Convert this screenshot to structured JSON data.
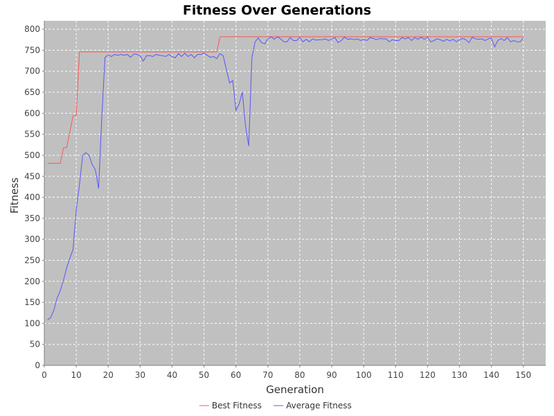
{
  "chart_data": {
    "type": "line",
    "title": "Fitness Over Generations",
    "xlabel": "Generation",
    "ylabel": "Fitness",
    "xlim": [
      0,
      157
    ],
    "ylim": [
      0,
      820
    ],
    "xticks": [
      0,
      10,
      20,
      30,
      40,
      50,
      60,
      70,
      80,
      90,
      100,
      110,
      120,
      130,
      140,
      150
    ],
    "yticks": [
      0,
      50,
      100,
      150,
      200,
      250,
      300,
      350,
      400,
      450,
      500,
      550,
      600,
      650,
      700,
      750,
      800
    ],
    "grid": true,
    "legend_position": "bottom-center",
    "colors": {
      "plot_background": "#c0c0c0",
      "grid": "#ffffff",
      "axis": "#808080"
    },
    "series": [
      {
        "name": "Best Fitness",
        "color": "#ff5555",
        "x": [
          1,
          5,
          6,
          7,
          8,
          9,
          10,
          11,
          54,
          55,
          150
        ],
        "y": [
          481,
          481,
          518,
          518,
          556,
          594,
          594,
          746,
          746,
          782,
          782
        ]
      },
      {
        "name": "Average Fitness",
        "color": "#5555ff",
        "x": [
          1,
          2,
          3,
          4,
          5,
          6,
          7,
          8,
          9,
          10,
          11,
          12,
          13,
          14,
          15,
          16,
          17,
          18,
          19,
          20,
          21,
          22,
          23,
          24,
          25,
          26,
          27,
          28,
          29,
          30,
          31,
          32,
          33,
          34,
          35,
          36,
          37,
          38,
          39,
          40,
          41,
          42,
          43,
          44,
          45,
          46,
          47,
          48,
          49,
          50,
          51,
          52,
          53,
          54,
          55,
          56,
          57,
          58,
          59,
          60,
          61,
          62,
          63,
          64,
          65,
          66,
          67,
          68,
          69,
          70,
          71,
          72,
          73,
          74,
          75,
          76,
          77,
          78,
          79,
          80,
          81,
          82,
          83,
          84,
          85,
          86,
          87,
          88,
          89,
          90,
          91,
          92,
          93,
          94,
          95,
          96,
          97,
          98,
          99,
          100,
          101,
          102,
          103,
          104,
          105,
          106,
          107,
          108,
          109,
          110,
          111,
          112,
          113,
          114,
          115,
          116,
          117,
          118,
          119,
          120,
          121,
          122,
          123,
          124,
          125,
          126,
          127,
          128,
          129,
          130,
          131,
          132,
          133,
          134,
          135,
          136,
          137,
          138,
          139,
          140,
          141,
          142,
          143,
          144,
          145,
          146,
          147,
          148,
          149,
          150
        ],
        "y": [
          108,
          114,
          132,
          160,
          178,
          203,
          232,
          255,
          276,
          370,
          430,
          500,
          506,
          500,
          478,
          465,
          421,
          590,
          733,
          739,
          735,
          740,
          738,
          740,
          738,
          740,
          733,
          741,
          740,
          737,
          724,
          737,
          737,
          735,
          740,
          738,
          737,
          735,
          740,
          735,
          732,
          742,
          735,
          743,
          735,
          740,
          732,
          740,
          740,
          743,
          738,
          733,
          735,
          730,
          742,
          737,
          705,
          672,
          678,
          607,
          622,
          650,
          570,
          522,
          732,
          770,
          779,
          768,
          765,
          777,
          782,
          776,
          782,
          777,
          770,
          770,
          780,
          773,
          773,
          780,
          770,
          776,
          770,
          777,
          774,
          775,
          775,
          777,
          773,
          777,
          780,
          768,
          773,
          781,
          776,
          777,
          775,
          777,
          773,
          776,
          773,
          780,
          778,
          775,
          778,
          777,
          777,
          770,
          775,
          773,
          773,
          780,
          777,
          780,
          773,
          780,
          776,
          781,
          776,
          781,
          770,
          773,
          777,
          775,
          771,
          776,
          772,
          776,
          770,
          775,
          778,
          775,
          768,
          781,
          777,
          776,
          777,
          773,
          777,
          779,
          758,
          773,
          778,
          773,
          780,
          770,
          773,
          770,
          770,
          779
        ]
      }
    ]
  }
}
